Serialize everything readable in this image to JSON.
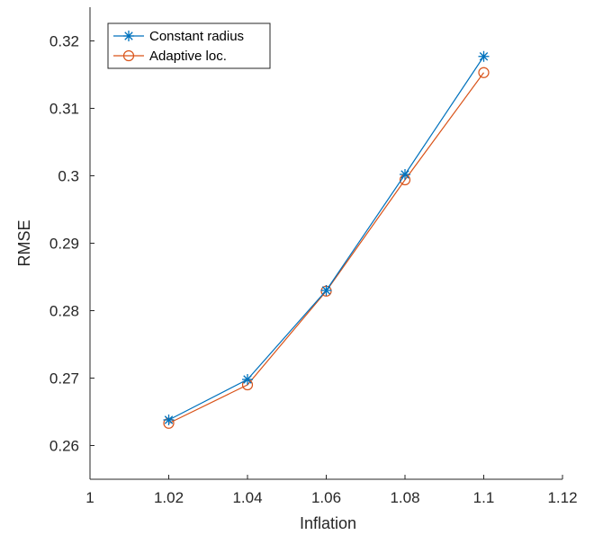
{
  "chart_data": {
    "type": "line",
    "xlabel": "Inflation",
    "ylabel": "RMSE",
    "xlim": [
      1,
      1.12
    ],
    "ylim": [
      0.255,
      0.325
    ],
    "x_ticks": [
      1,
      1.02,
      1.04,
      1.06,
      1.08,
      1.1,
      1.12
    ],
    "x_tick_labels": [
      "1",
      "1.02",
      "1.04",
      "1.06",
      "1.08",
      "1.1",
      "1.12"
    ],
    "y_ticks": [
      0.26,
      0.27,
      0.28,
      0.29,
      0.3,
      0.31,
      0.32
    ],
    "y_tick_labels": [
      "0.26",
      "0.27",
      "0.28",
      "0.29",
      "0.3",
      "0.31",
      "0.32"
    ],
    "grid": false,
    "legend_position": "top-left",
    "x": [
      1.02,
      1.04,
      1.06,
      1.08,
      1.1
    ],
    "series": [
      {
        "name": "Constant radius",
        "values": [
          0.2638,
          0.2698,
          0.283,
          0.3002,
          0.3177
        ],
        "color": "#0072BD",
        "marker": "asterisk"
      },
      {
        "name": "Adaptive loc.",
        "values": [
          0.2633,
          0.269,
          0.2829,
          0.2994,
          0.3153
        ],
        "color": "#D95319",
        "marker": "circle"
      }
    ]
  }
}
